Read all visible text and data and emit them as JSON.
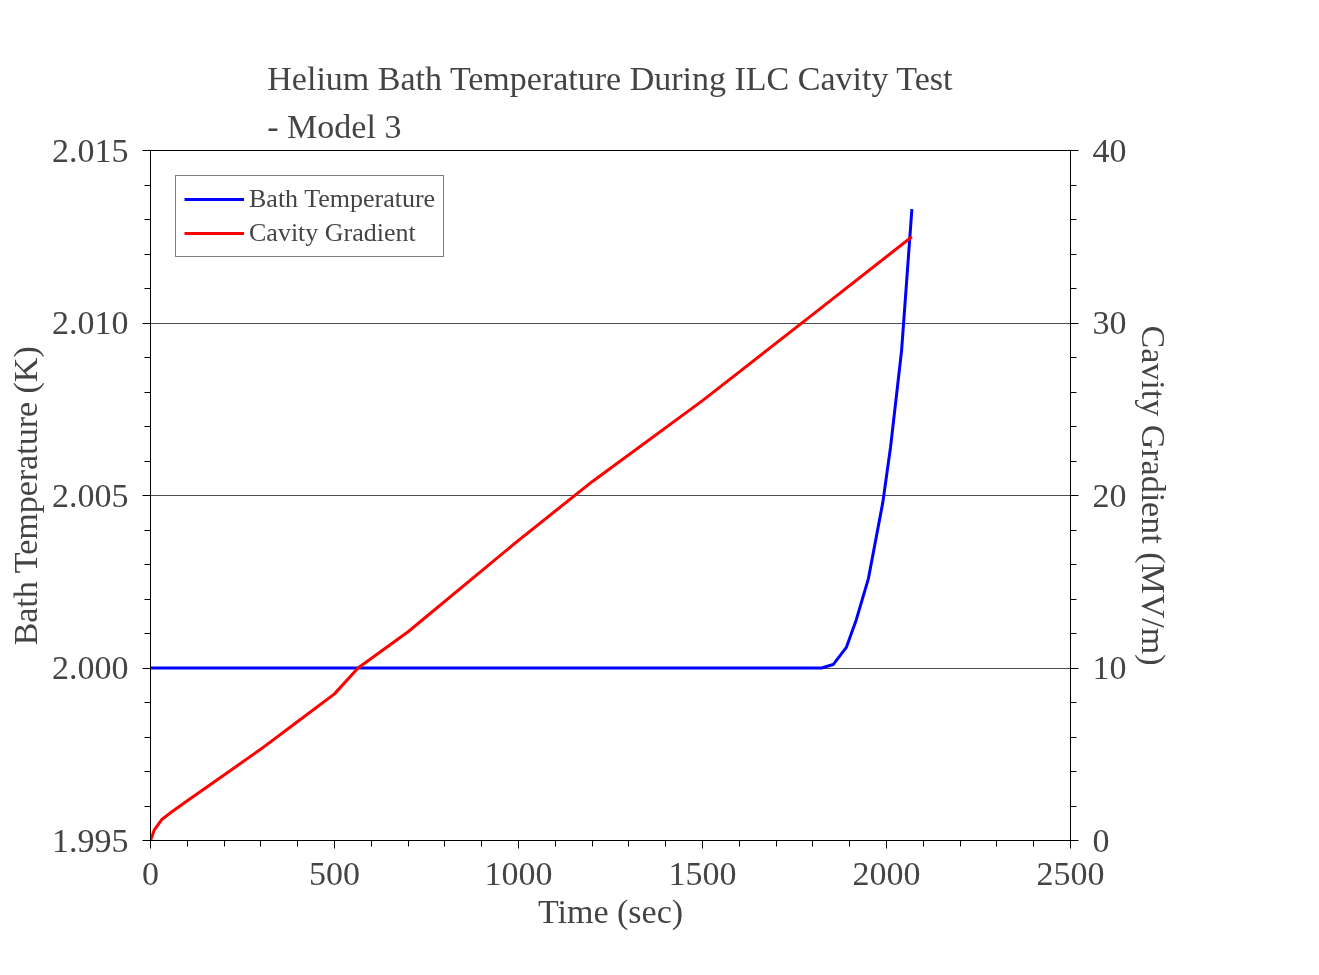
{
  "chart_data": {
    "type": "line",
    "title": "Helium Bath Temperature During ILC Cavity Test - Model 3",
    "xlabel": "Time (sec)",
    "ylabel": "Bath Temperature (K)",
    "y2label": "Cavity Gradient (MV/m)",
    "xlim": [
      0,
      2500
    ],
    "xticks": [
      0,
      500,
      1000,
      1500,
      2000,
      2500
    ],
    "ylim": [
      1.995,
      2.015
    ],
    "yticks": [
      {
        "value": 1.995,
        "label": "1.995"
      },
      {
        "value": 2.0,
        "label": "2.000"
      },
      {
        "value": 2.005,
        "label": "2.005"
      },
      {
        "value": 2.01,
        "label": "2.010"
      },
      {
        "value": 2.015,
        "label": "2.015"
      }
    ],
    "y2lim": [
      0,
      40
    ],
    "y2ticks": [
      0,
      10,
      20,
      30,
      40
    ],
    "grid": "y",
    "legend": "top left",
    "line_style": "solid",
    "marker": "none",
    "series": [
      {
        "name": "Bath Temperature",
        "color": "#0000ff",
        "x": [
          0,
          500,
          1000,
          1500,
          1824,
          1855,
          1891,
          1918,
          1951,
          1990,
          2011,
          2041,
          2069
        ],
        "values": [
          2.0,
          2.0,
          2.0,
          2.0,
          2.0,
          2.0001,
          2.0006,
          2.0014,
          2.0026,
          2.0048,
          2.0064,
          2.0092,
          2.0133
        ]
      },
      {
        "name": "Cavity Gradient",
        "color": "#ff0000",
        "axis": "y2",
        "x": [
          0,
          10,
          30,
          60,
          100,
          200,
          300,
          400,
          500,
          564,
          700,
          1000,
          1200,
          1500,
          1800,
          2069
        ],
        "values": [
          0,
          0.6,
          1.2,
          1.7,
          2.3,
          3.8,
          5.3,
          6.9,
          8.5,
          10,
          12.1,
          17.4,
          20.8,
          25.5,
          30.5,
          35.0
        ]
      }
    ]
  }
}
